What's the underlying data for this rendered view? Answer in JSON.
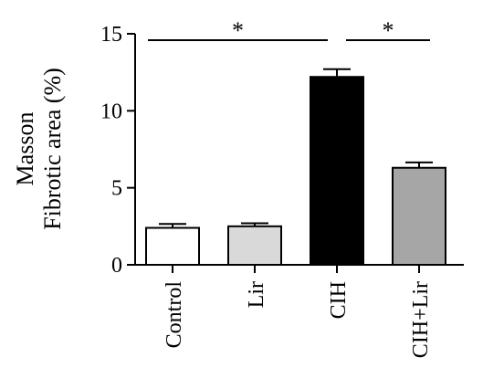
{
  "chart_data": {
    "type": "bar",
    "ylabel_lines": [
      "Masson",
      "Fibrotic area (%)"
    ],
    "categories": [
      "Control",
      "Lir",
      "CIH",
      "CIH+Lir"
    ],
    "values": [
      2.4,
      2.5,
      12.2,
      6.3
    ],
    "errors": [
      0.25,
      0.2,
      0.5,
      0.35
    ],
    "bar_colors": [
      "#ffffff",
      "#d9d9d9",
      "#000000",
      "#a6a6a6"
    ],
    "ylim": [
      0,
      15
    ],
    "yticks": [
      "0",
      "5",
      "10",
      "15"
    ],
    "significance": [
      {
        "from": "Control",
        "to": "CIH",
        "label": "*"
      },
      {
        "from": "CIH",
        "to": "CIH+Lir",
        "label": "*"
      }
    ],
    "grid": false
  }
}
